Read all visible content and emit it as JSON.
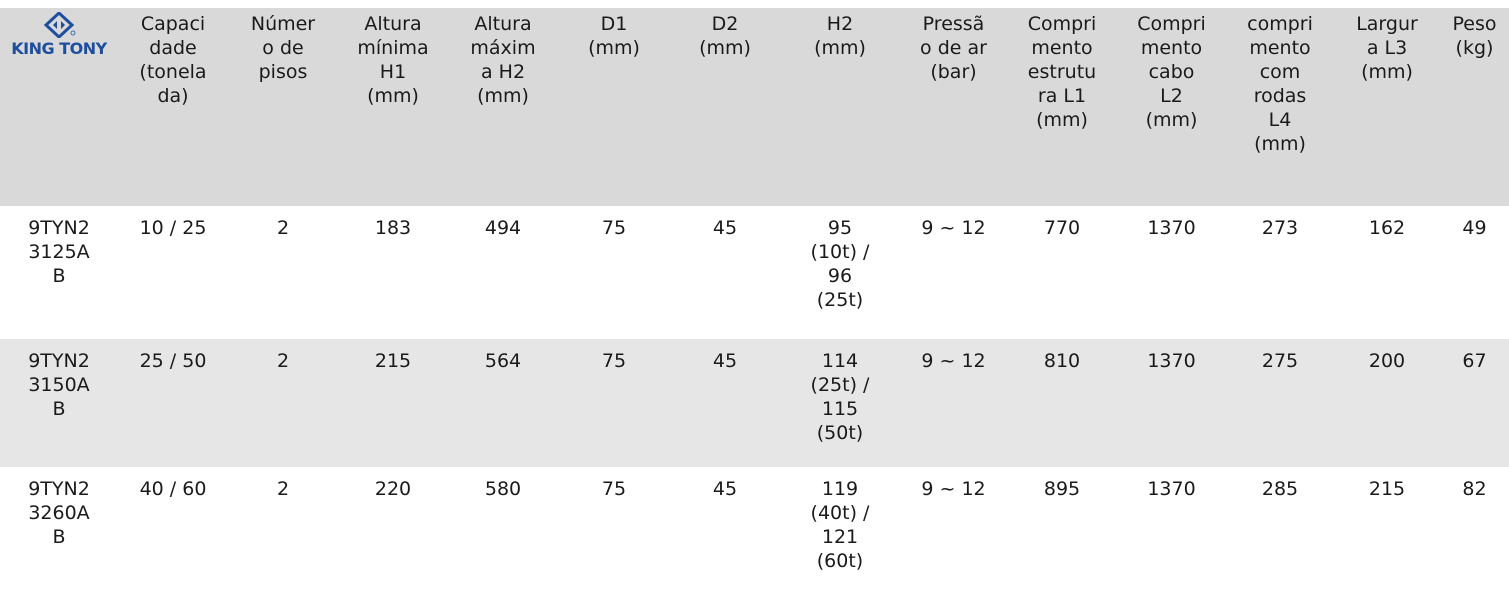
{
  "brand": {
    "name": "KING TONY",
    "color": "#1e4f9e",
    "icon": "king-tony-logo-icon"
  },
  "headers": [
    [
      "Capaci",
      "dade",
      "(tonela",
      "da)"
    ],
    [
      "Númer",
      "o de",
      "pisos"
    ],
    [
      "Altura",
      "mínima",
      "H1",
      "(mm)"
    ],
    [
      "Altura",
      "máxim",
      "a H2",
      "(mm)"
    ],
    [
      "D1",
      "(mm)"
    ],
    [
      "D2",
      "(mm)"
    ],
    [
      "H2",
      "(mm)"
    ],
    [
      "Pressã",
      "o de ar",
      "(bar)"
    ],
    [
      "Compri",
      "mento",
      "estrutu",
      "ra L1",
      "(mm)"
    ],
    [
      "Compri",
      "mento",
      "cabo",
      "L2",
      "(mm)"
    ],
    [
      "compri",
      "mento",
      "com",
      "rodas",
      "L4",
      "(mm)"
    ],
    [
      "Largur",
      "a L3",
      "(mm)"
    ],
    [
      "Peso",
      "(kg)"
    ]
  ],
  "rows": [
    {
      "model": [
        "9TYN2",
        "3125A",
        "B"
      ],
      "cells": [
        [
          "10 / 25"
        ],
        [
          "2"
        ],
        [
          "183"
        ],
        [
          "494"
        ],
        [
          "75"
        ],
        [
          "45"
        ],
        [
          "95",
          "(10t) /",
          "96",
          "(25t)"
        ],
        [
          "9 ~ 12"
        ],
        [
          "770"
        ],
        [
          "1370"
        ],
        [
          "273"
        ],
        [
          "162"
        ],
        [
          "49"
        ]
      ]
    },
    {
      "model": [
        "9TYN2",
        "3150A",
        "B"
      ],
      "cells": [
        [
          "25 / 50"
        ],
        [
          "2"
        ],
        [
          "215"
        ],
        [
          "564"
        ],
        [
          "75"
        ],
        [
          "45"
        ],
        [
          "114",
          "(25t) /",
          "115",
          "(50t)"
        ],
        [
          "9 ~ 12"
        ],
        [
          "810"
        ],
        [
          "1370"
        ],
        [
          "275"
        ],
        [
          "200"
        ],
        [
          "67"
        ]
      ]
    },
    {
      "model": [
        "9TYN2",
        "3260A",
        "B"
      ],
      "cells": [
        [
          "40 / 60"
        ],
        [
          "2"
        ],
        [
          "220"
        ],
        [
          "580"
        ],
        [
          "75"
        ],
        [
          "45"
        ],
        [
          "119",
          "(40t) /",
          "121",
          "(60t)"
        ],
        [
          "9 ~ 12"
        ],
        [
          "895"
        ],
        [
          "1370"
        ],
        [
          "285"
        ],
        [
          "215"
        ],
        [
          "82"
        ]
      ]
    }
  ]
}
